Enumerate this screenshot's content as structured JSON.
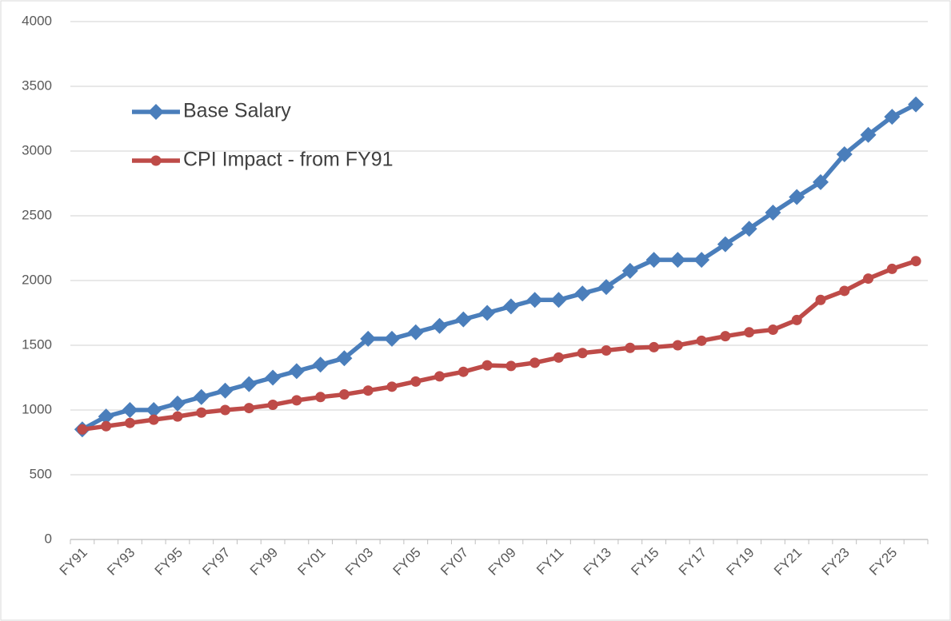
{
  "chart_data": {
    "type": "line",
    "categories": [
      "FY91",
      null,
      "FY93",
      null,
      "FY95",
      null,
      "FY97",
      null,
      "FY99",
      null,
      "FY01",
      null,
      "FY03",
      null,
      "FY05",
      null,
      "FY07",
      null,
      "FY09",
      null,
      "FY11",
      null,
      "FY13",
      null,
      "FY15",
      null,
      "FY17",
      null,
      "FY19",
      null,
      "FY21",
      null,
      "FY23",
      null,
      "FY25",
      null
    ],
    "series": [
      {
        "name": "Base Salary",
        "color": "#4a7ebb",
        "marker": "diamond",
        "values": [
          850,
          950,
          1000,
          1000,
          1050,
          1100,
          1150,
          1200,
          1250,
          1300,
          1350,
          1400,
          1550,
          1550,
          1600,
          1650,
          1700,
          1750,
          1800,
          1850,
          1850,
          1900,
          1950,
          2075,
          2160,
          2160,
          2160,
          2280,
          2400,
          2525,
          2645,
          2760,
          2975,
          3125,
          3265,
          3360
        ]
      },
      {
        "name": "CPI Impact - from FY91",
        "color": "#be4b48",
        "marker": "circle",
        "values": [
          850,
          875,
          900,
          925,
          950,
          980,
          1000,
          1015,
          1040,
          1075,
          1100,
          1120,
          1150,
          1180,
          1220,
          1260,
          1295,
          1345,
          1340,
          1365,
          1405,
          1440,
          1460,
          1480,
          1485,
          1500,
          1535,
          1570,
          1600,
          1620,
          1695,
          1850,
          1920,
          2015,
          2090,
          2150
        ]
      }
    ],
    "ylim": [
      0,
      4000
    ],
    "yticks": [
      0,
      500,
      1000,
      1500,
      2000,
      2500,
      3000,
      3500,
      4000
    ],
    "grid": true,
    "legend": "upper left"
  }
}
